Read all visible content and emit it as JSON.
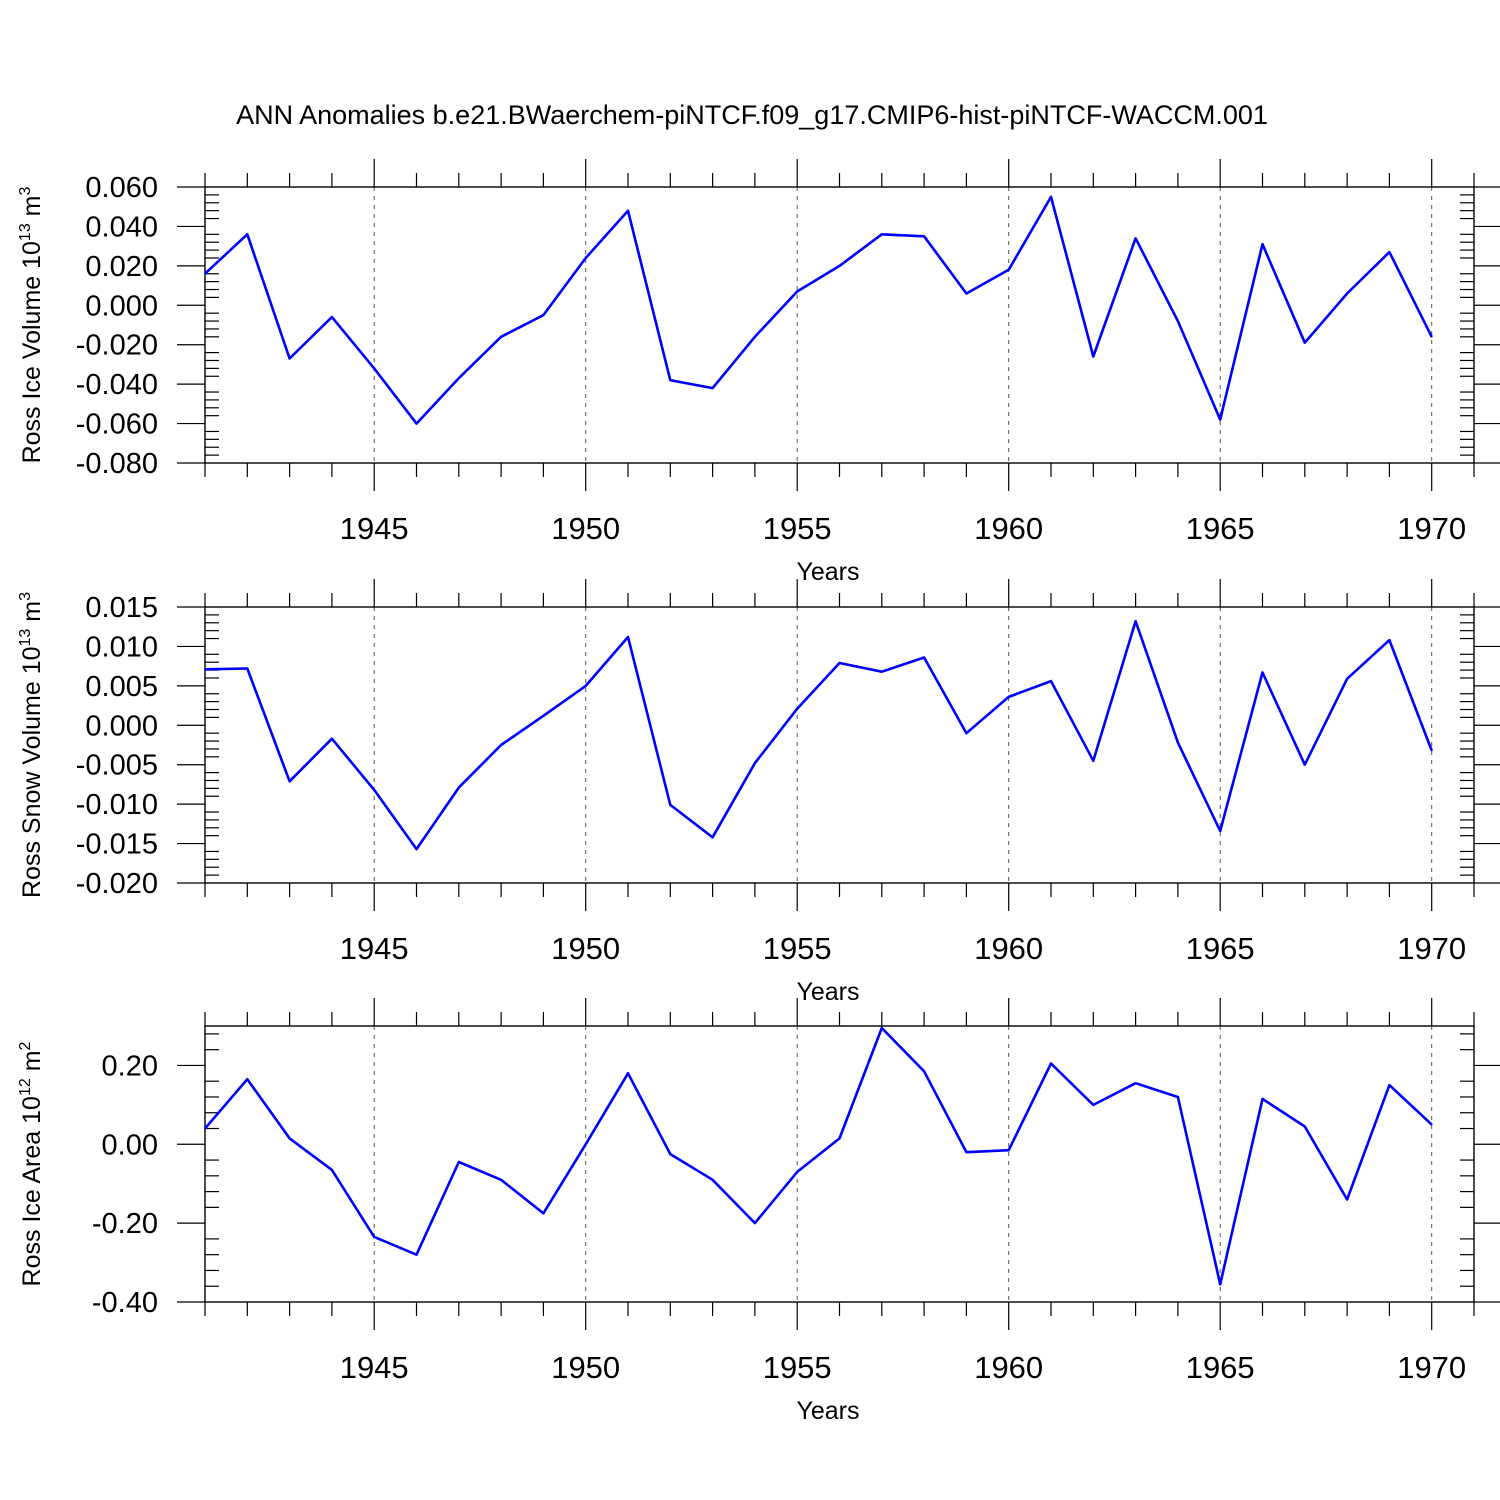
{
  "title": "ANN Anomalies b.e21.BWaerchem-piNTCF.f09_g17.CMIP6-hist-piNTCF-WACCM.001",
  "line_color": "#0000ff",
  "chart_data": [
    {
      "type": "line",
      "ylabel_main": "Ross Ice Volume 10",
      "ylabel_exp": "13",
      "ylabel_unit": " m",
      "ylabel_unit_exp": "3",
      "xlabel": "Years",
      "xlim": [
        1941,
        1971
      ],
      "ylim": [
        -0.08,
        0.06
      ],
      "yticks": [
        -0.08,
        -0.06,
        -0.04,
        -0.02,
        0.0,
        0.02,
        0.04,
        0.06
      ],
      "ytick_labels": [
        "-0.080",
        "-0.060",
        "-0.040",
        "-0.020",
        "0.000",
        "0.020",
        "0.040",
        "0.060"
      ],
      "xticks": [
        1945,
        1950,
        1955,
        1960,
        1965,
        1970
      ],
      "xtick_labels": [
        "1945",
        "1950",
        "1955",
        "1960",
        "1965",
        "1970"
      ],
      "x": [
        1941,
        1942,
        1943,
        1944,
        1945,
        1946,
        1947,
        1948,
        1949,
        1950,
        1951,
        1952,
        1953,
        1954,
        1955,
        1956,
        1957,
        1958,
        1959,
        1960,
        1961,
        1962,
        1963,
        1964,
        1965,
        1966,
        1967,
        1968,
        1969,
        1970
      ],
      "values": [
        0.016,
        0.036,
        -0.027,
        -0.006,
        -0.032,
        -0.06,
        -0.037,
        -0.016,
        -0.005,
        0.024,
        0.048,
        -0.038,
        -0.042,
        -0.016,
        0.007,
        0.02,
        0.036,
        0.035,
        0.006,
        0.018,
        0.055,
        -0.026,
        0.034,
        -0.008,
        -0.058,
        0.031,
        -0.019,
        0.006,
        0.027,
        -0.016
      ]
    },
    {
      "type": "line",
      "ylabel_main": "Ross Snow Volume 10",
      "ylabel_exp": "13",
      "ylabel_unit": " m",
      "ylabel_unit_exp": "3",
      "xlabel": "Years",
      "xlim": [
        1941,
        1971
      ],
      "ylim": [
        -0.02,
        0.015
      ],
      "yticks": [
        -0.02,
        -0.015,
        -0.01,
        -0.005,
        0.0,
        0.005,
        0.01,
        0.015
      ],
      "ytick_labels": [
        "-0.020",
        "-0.015",
        "-0.010",
        "-0.005",
        "0.000",
        "0.005",
        "0.010",
        "0.015"
      ],
      "xticks": [
        1945,
        1950,
        1955,
        1960,
        1965,
        1970
      ],
      "xtick_labels": [
        "1945",
        "1950",
        "1955",
        "1960",
        "1965",
        "1970"
      ],
      "x": [
        1941,
        1942,
        1943,
        1944,
        1945,
        1946,
        1947,
        1948,
        1949,
        1950,
        1951,
        1952,
        1953,
        1954,
        1955,
        1956,
        1957,
        1958,
        1959,
        1960,
        1961,
        1962,
        1963,
        1964,
        1965,
        1966,
        1967,
        1968,
        1969,
        1970
      ],
      "values": [
        0.0071,
        0.0072,
        -0.0071,
        -0.0017,
        -0.0082,
        -0.0157,
        -0.0079,
        -0.0025,
        0.0012,
        0.005,
        0.0112,
        -0.0101,
        -0.0142,
        -0.0048,
        0.0021,
        0.0079,
        0.0068,
        0.0086,
        -0.001,
        0.0036,
        0.0056,
        -0.0045,
        0.0132,
        -0.0022,
        -0.0134,
        0.0067,
        -0.005,
        0.0059,
        0.0108,
        -0.0032
      ]
    },
    {
      "type": "line",
      "ylabel_main": "Ross Ice Area 10",
      "ylabel_exp": "12",
      "ylabel_unit": " m",
      "ylabel_unit_exp": "2",
      "xlabel": "Years",
      "xlim": [
        1941,
        1971
      ],
      "ylim": [
        -0.4,
        0.3
      ],
      "yticks": [
        -0.4,
        -0.2,
        0.0,
        0.2
      ],
      "ytick_labels": [
        "-0.40",
        "-0.20",
        "0.00",
        "0.20"
      ],
      "xticks": [
        1945,
        1950,
        1955,
        1960,
        1965,
        1970
      ],
      "xtick_labels": [
        "1945",
        "1950",
        "1955",
        "1960",
        "1965",
        "1970"
      ],
      "x": [
        1941,
        1942,
        1943,
        1944,
        1945,
        1946,
        1947,
        1948,
        1949,
        1950,
        1951,
        1952,
        1953,
        1954,
        1955,
        1956,
        1957,
        1958,
        1959,
        1960,
        1961,
        1962,
        1963,
        1964,
        1965,
        1966,
        1967,
        1968,
        1969,
        1970
      ],
      "values": [
        0.04,
        0.165,
        0.015,
        -0.065,
        -0.235,
        -0.28,
        -0.045,
        -0.09,
        -0.175,
        0.0,
        0.18,
        -0.025,
        -0.09,
        -0.2,
        -0.07,
        0.015,
        0.295,
        0.185,
        -0.02,
        -0.015,
        0.205,
        0.1,
        0.155,
        0.12,
        -0.355,
        0.115,
        0.045,
        -0.14,
        0.15,
        0.05
      ]
    }
  ]
}
